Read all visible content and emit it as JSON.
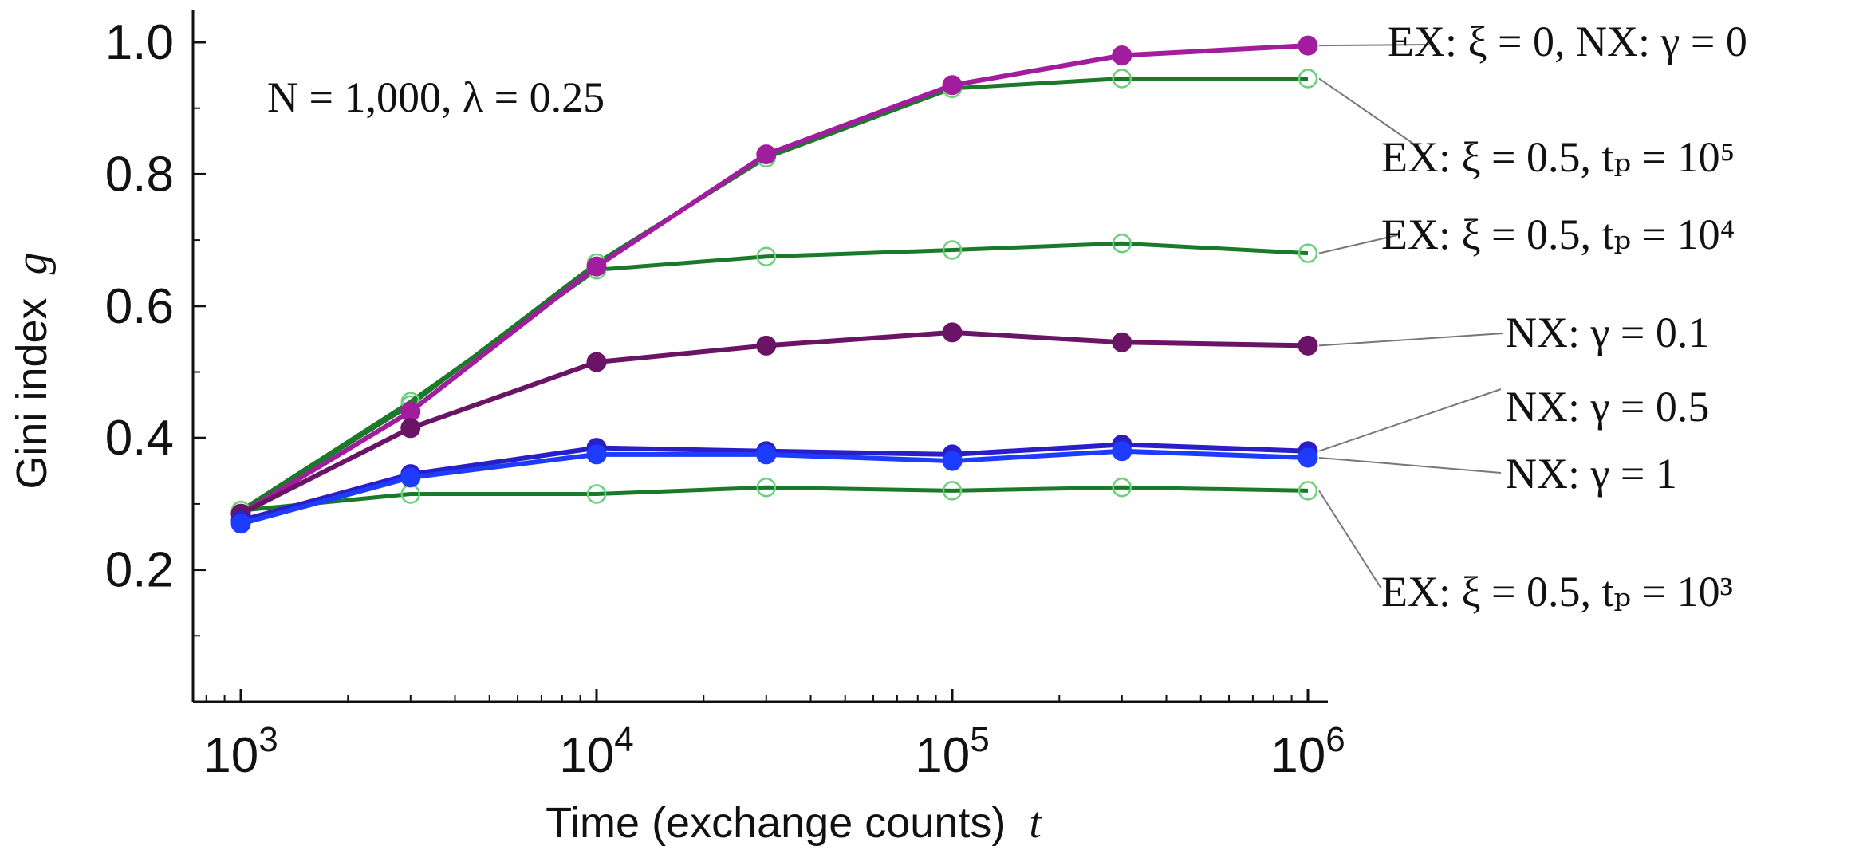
{
  "chart_data": {
    "type": "line",
    "title": "",
    "xlabel": "Time (exchange counts)",
    "xlabel_var": "t",
    "ylabel": "Gini index",
    "ylabel_var": "g",
    "x_scale": "log",
    "xlim": [
      800,
      1300000
    ],
    "ylim": [
      0.0,
      1.05
    ],
    "x_ticks": [
      {
        "value": 1000,
        "base": "10",
        "exp": "3"
      },
      {
        "value": 10000,
        "base": "10",
        "exp": "4"
      },
      {
        "value": 100000,
        "base": "10",
        "exp": "5"
      },
      {
        "value": 1000000,
        "base": "10",
        "exp": "6"
      }
    ],
    "y_ticks": [
      {
        "value": 0.2,
        "label": "0.2"
      },
      {
        "value": 0.4,
        "label": "0.4"
      },
      {
        "value": 0.6,
        "label": "0.6"
      },
      {
        "value": 0.8,
        "label": "0.8"
      },
      {
        "value": 1.0,
        "label": "1.0"
      }
    ],
    "annotation": "N = 1,000, λ = 0.25",
    "x": [
      1000,
      3000,
      10000,
      30000,
      100000,
      300000,
      1000000
    ],
    "series": [
      {
        "name": "EX: ξ = 0.5, t_p = 10^5",
        "label": "EX: ξ = 0.5, tₚ = 10⁵",
        "color": "#1a7a2a",
        "marker": "open",
        "values": [
          0.29,
          0.45,
          0.665,
          0.825,
          0.93,
          0.945,
          0.945
        ]
      },
      {
        "name": "EX: ξ = 0.5, t_p = 10^4",
        "label": "EX: ξ = 0.5, tₚ = 10⁴",
        "color": "#1a7a2a",
        "marker": "open",
        "values": [
          0.29,
          0.455,
          0.655,
          0.675,
          0.685,
          0.695,
          0.68
        ]
      },
      {
        "name": "EX: ξ = 0.5, t_p = 10^3",
        "label": "EX: ξ = 0.5, tₚ = 10³",
        "color": "#1a7a2a",
        "marker": "open",
        "values": [
          0.29,
          0.315,
          0.315,
          0.325,
          0.32,
          0.325,
          0.32
        ]
      },
      {
        "name": "EX: ξ = 0, NX: γ = 0",
        "label": "EX: ξ = 0, NX: γ = 0",
        "color": "#a21c9e",
        "marker": "filled",
        "values": [
          0.285,
          0.44,
          0.66,
          0.83,
          0.935,
          0.98,
          0.995
        ]
      },
      {
        "name": "NX: γ = 0.1",
        "label": "NX: γ = 0.1",
        "color": "#6a1466",
        "marker": "filled",
        "values": [
          0.285,
          0.415,
          0.515,
          0.54,
          0.56,
          0.545,
          0.54
        ]
      },
      {
        "name": "NX: γ = 0.5",
        "label": "NX: γ = 0.5",
        "color": "#2a1ec8",
        "marker": "filled",
        "values": [
          0.275,
          0.345,
          0.385,
          0.38,
          0.375,
          0.39,
          0.38
        ]
      },
      {
        "name": "NX: γ = 1",
        "label": "NX: γ = 1",
        "color": "#1e3cff",
        "marker": "filled",
        "values": [
          0.27,
          0.34,
          0.375,
          0.375,
          0.365,
          0.38,
          0.37
        ]
      }
    ]
  }
}
